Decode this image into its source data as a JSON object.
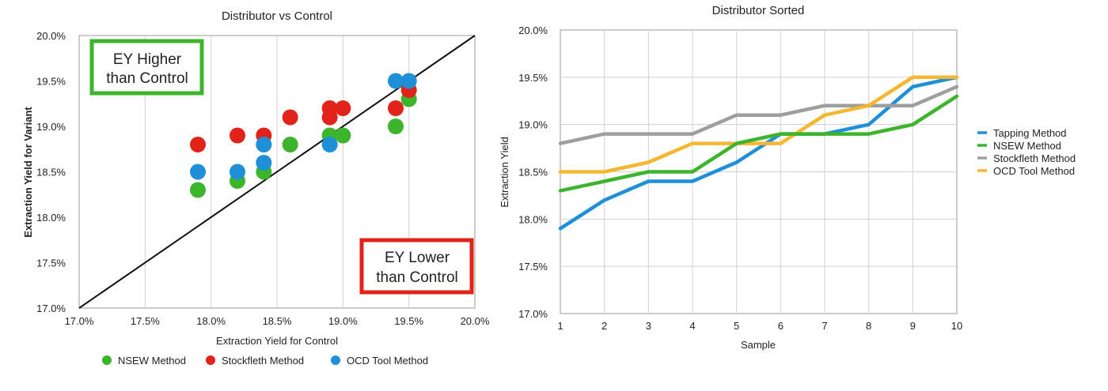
{
  "chart_data": [
    {
      "type": "scatter",
      "title": "Distributor vs Control",
      "xlabel": "Extraction Yield for Control",
      "ylabel": "Extraction Yield for Variant",
      "xlim": [
        0.17,
        0.2
      ],
      "ylim": [
        0.17,
        0.2
      ],
      "x_ticks": [
        "17.0%",
        "17.5%",
        "18.0%",
        "18.5%",
        "19.0%",
        "19.5%",
        "20.0%"
      ],
      "y_ticks": [
        "17.0%",
        "17.5%",
        "18.0%",
        "18.5%",
        "19.0%",
        "19.5%",
        "20.0%"
      ],
      "grid": "vertical",
      "legend_position": "bottom",
      "reference_line": "y = x",
      "annotations": [
        {
          "lines": [
            "EY Higher",
            "than Control"
          ],
          "color": "#3cb52c"
        },
        {
          "lines": [
            "EY Lower",
            "than Control"
          ],
          "color": "#e2231a"
        }
      ],
      "series": [
        {
          "name": "NSEW Method",
          "color": "#3cb52c",
          "points": [
            [
              0.179,
              0.183
            ],
            [
              0.182,
              0.184
            ],
            [
              0.184,
              0.185
            ],
            [
              0.186,
              0.188
            ],
            [
              0.189,
              0.189
            ],
            [
              0.19,
              0.189
            ],
            [
              0.194,
              0.19
            ],
            [
              0.195,
              0.193
            ]
          ]
        },
        {
          "name": "Stockfleth Method",
          "color": "#e2231a",
          "points": [
            [
              0.179,
              0.188
            ],
            [
              0.182,
              0.189
            ],
            [
              0.184,
              0.189
            ],
            [
              0.186,
              0.191
            ],
            [
              0.189,
              0.191
            ],
            [
              0.189,
              0.192
            ],
            [
              0.19,
              0.192
            ],
            [
              0.194,
              0.192
            ],
            [
              0.195,
              0.194
            ]
          ]
        },
        {
          "name": "OCD Tool Method",
          "color": "#1f8fd8",
          "points": [
            [
              0.179,
              0.185
            ],
            [
              0.182,
              0.185
            ],
            [
              0.184,
              0.186
            ],
            [
              0.184,
              0.188
            ],
            [
              0.189,
              0.188
            ],
            [
              0.194,
              0.195
            ],
            [
              0.195,
              0.195
            ]
          ]
        }
      ]
    },
    {
      "type": "line",
      "title": "Distributor Sorted",
      "xlabel": "Sample",
      "ylabel": "Extraction Yield",
      "x": [
        1,
        2,
        3,
        4,
        5,
        6,
        7,
        8,
        9,
        10
      ],
      "ylim": [
        0.17,
        0.2
      ],
      "y_ticks": [
        "17.0%",
        "17.5%",
        "18.0%",
        "18.5%",
        "19.0%",
        "19.5%",
        "20.0%"
      ],
      "grid": "both",
      "legend_position": "right",
      "series": [
        {
          "name": "Tapping Method",
          "color": "#1f8fd8",
          "values": [
            0.179,
            0.182,
            0.184,
            0.184,
            0.186,
            0.189,
            0.189,
            0.19,
            0.194,
            0.195
          ]
        },
        {
          "name": "NSEW Method",
          "color": "#3cb52c",
          "values": [
            0.183,
            0.184,
            0.185,
            0.185,
            0.188,
            0.189,
            0.189,
            0.189,
            0.19,
            0.193
          ]
        },
        {
          "name": "Stockfleth Method",
          "color": "#9e9e9e",
          "values": [
            0.188,
            0.189,
            0.189,
            0.189,
            0.191,
            0.191,
            0.192,
            0.192,
            0.192,
            0.194
          ]
        },
        {
          "name": "OCD Tool Method",
          "color": "#f5b731",
          "values": [
            0.185,
            0.185,
            0.186,
            0.188,
            0.188,
            0.188,
            0.191,
            0.192,
            0.195,
            0.195
          ]
        }
      ]
    }
  ]
}
